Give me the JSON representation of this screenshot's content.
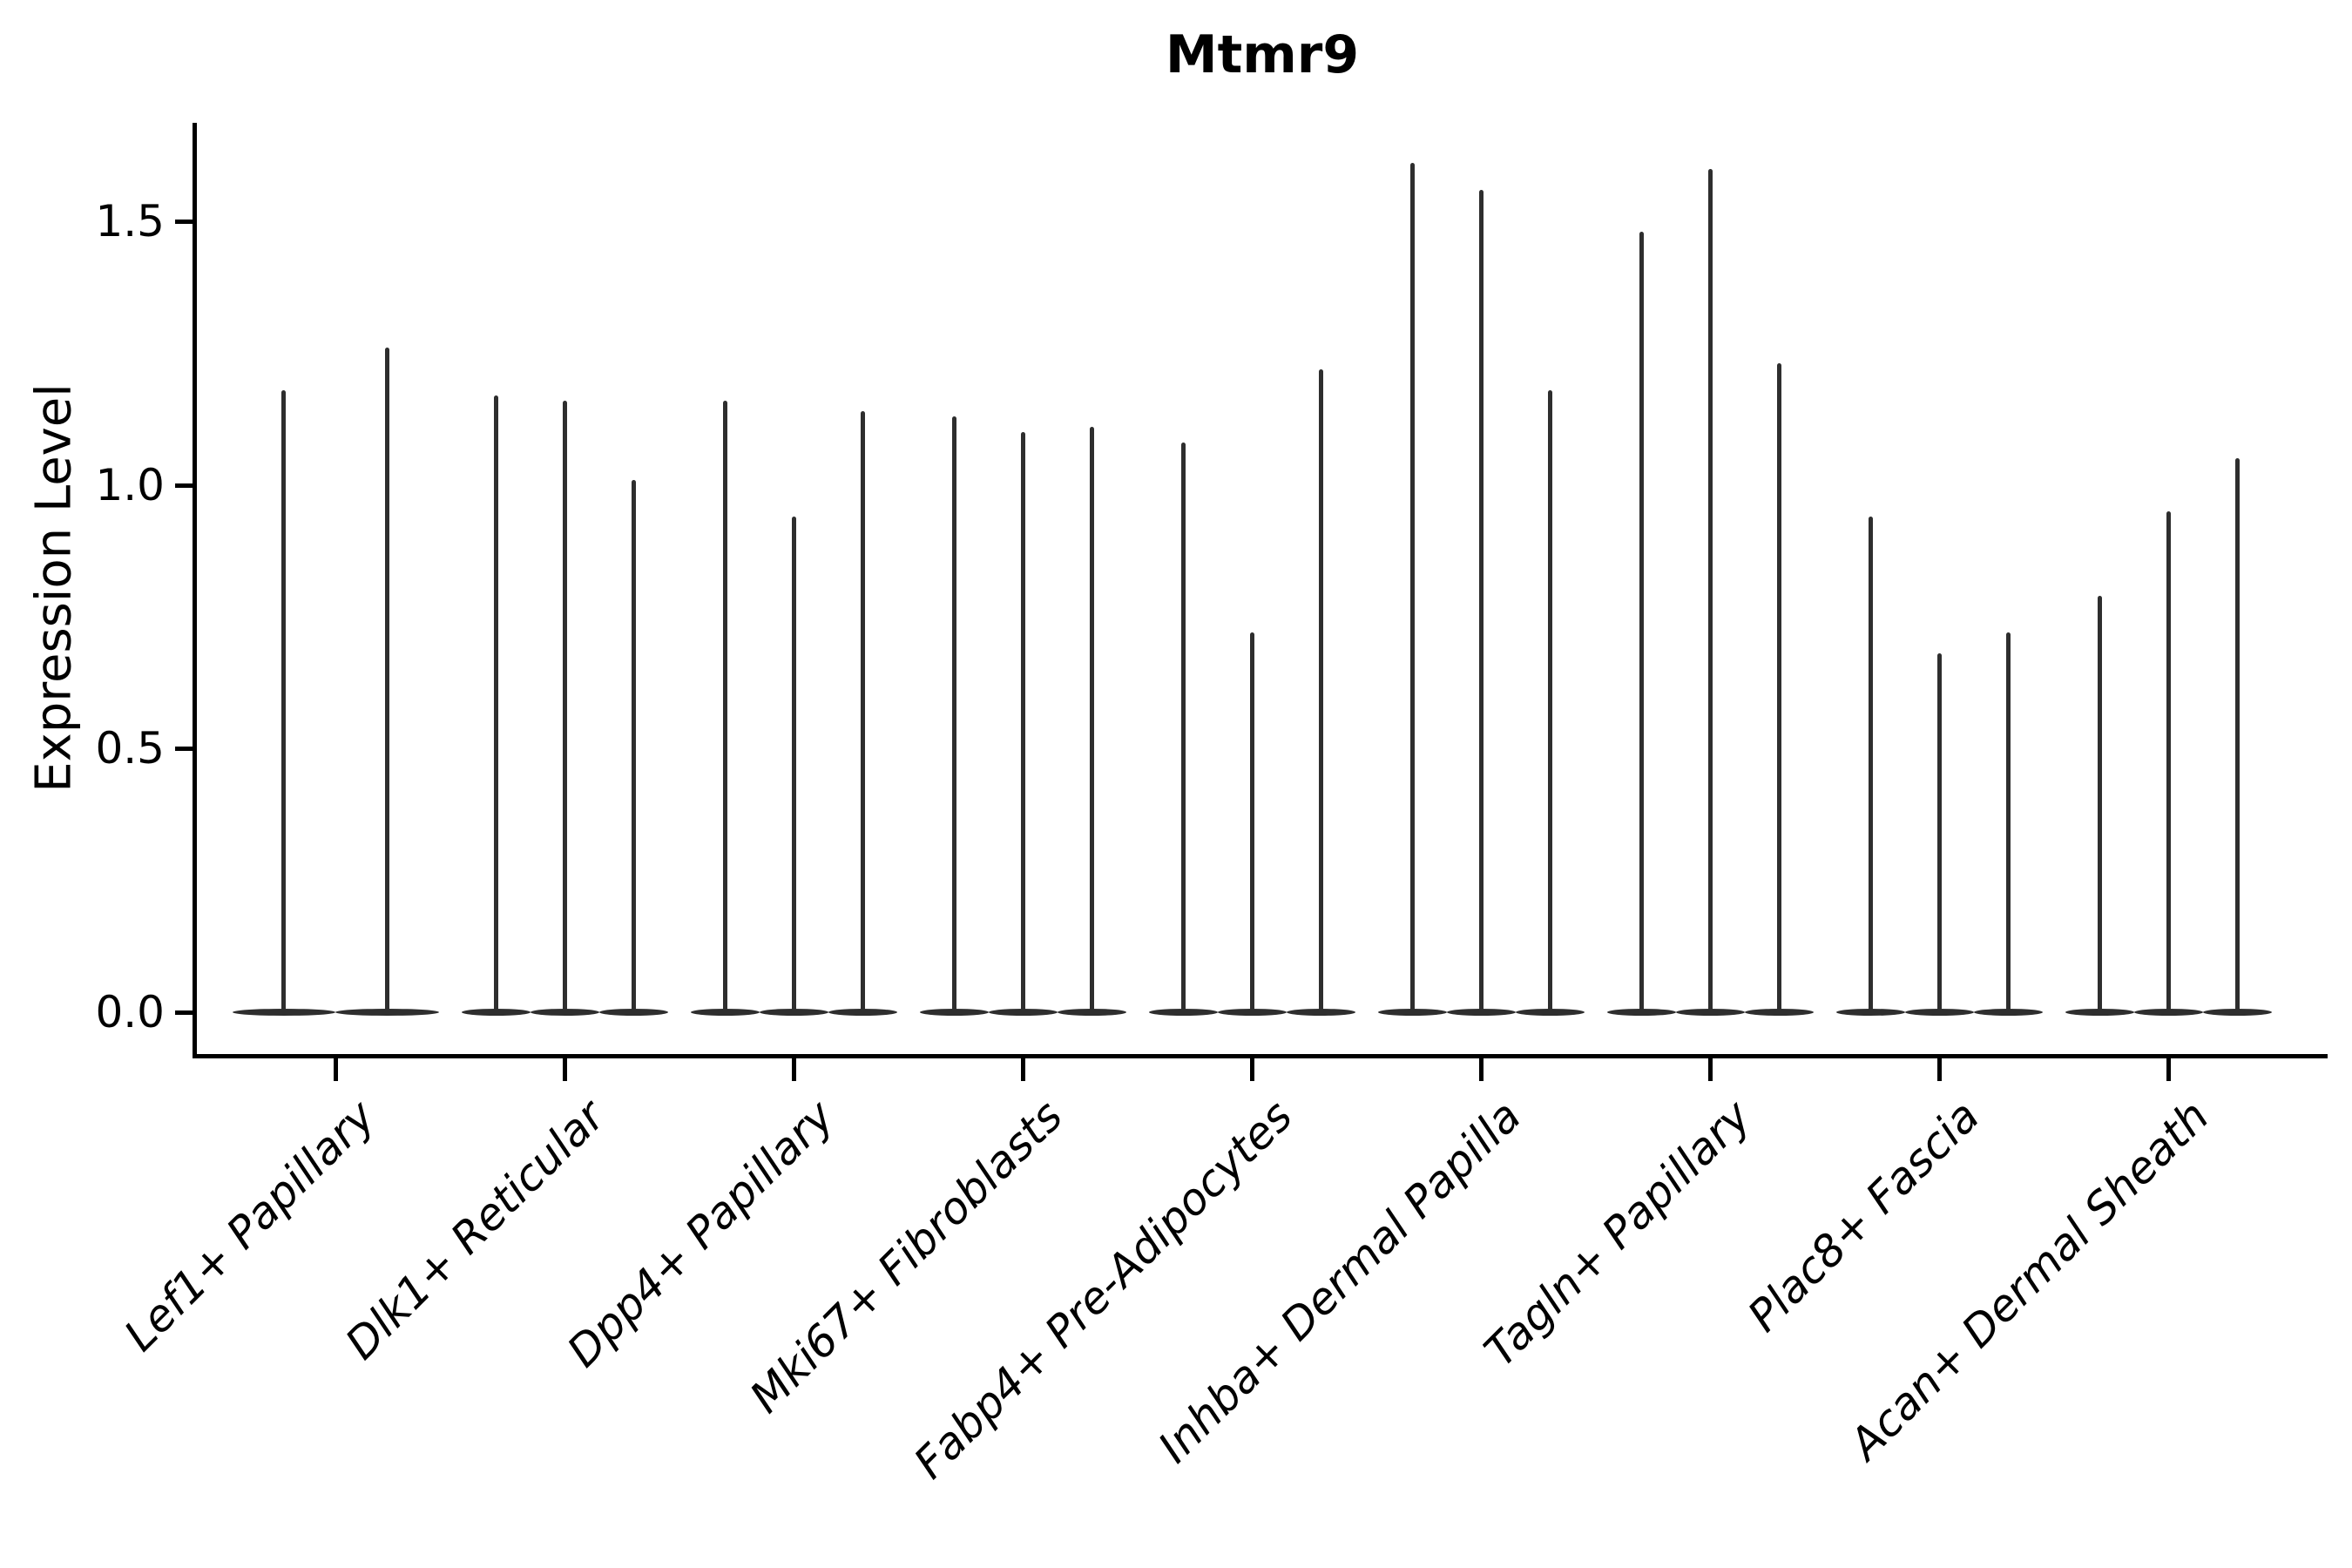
{
  "chart_data": {
    "type": "violin",
    "title": "Mtmr9",
    "ylabel": "Expression Level",
    "xlabel": "",
    "ylim": [
      -0.08,
      1.69
    ],
    "grid": false,
    "legend": "none",
    "violin_color": "#2e2e2e",
    "axis_color": "#000000",
    "yticks": [
      {
        "value": 0.0,
        "label": "0.0"
      },
      {
        "value": 0.5,
        "label": "0.5"
      },
      {
        "value": 1.0,
        "label": "1.0"
      },
      {
        "value": 1.5,
        "label": "1.5"
      }
    ],
    "groups": [
      {
        "label": "Lef1+ Papillary",
        "violin_maxima": [
          1.18,
          1.26
        ]
      },
      {
        "label": "Dlk1+ Reticular",
        "violin_maxima": [
          1.17,
          1.16,
          1.01
        ]
      },
      {
        "label": "Dpp4+ Papillary",
        "violin_maxima": [
          1.16,
          0.94,
          1.14
        ]
      },
      {
        "label": "Mki67+ Fibroblasts",
        "violin_maxima": [
          1.13,
          1.1,
          1.11
        ]
      },
      {
        "label": "Fabp4+ Pre-Adipocytes",
        "violin_maxima": [
          1.08,
          0.72,
          1.22
        ]
      },
      {
        "label": "Inhba+ Dermal Papilla",
        "violin_maxima": [
          1.61,
          1.56,
          1.18
        ]
      },
      {
        "label": "Tagln+ Papillary",
        "violin_maxima": [
          1.48,
          1.6,
          1.23
        ]
      },
      {
        "label": "Plac8+ Fascia",
        "violin_maxima": [
          0.94,
          0.68,
          0.72
        ]
      },
      {
        "label": "Acan+ Dermal Sheath",
        "violin_maxima": [
          0.79,
          0.95,
          1.05
        ]
      }
    ]
  }
}
